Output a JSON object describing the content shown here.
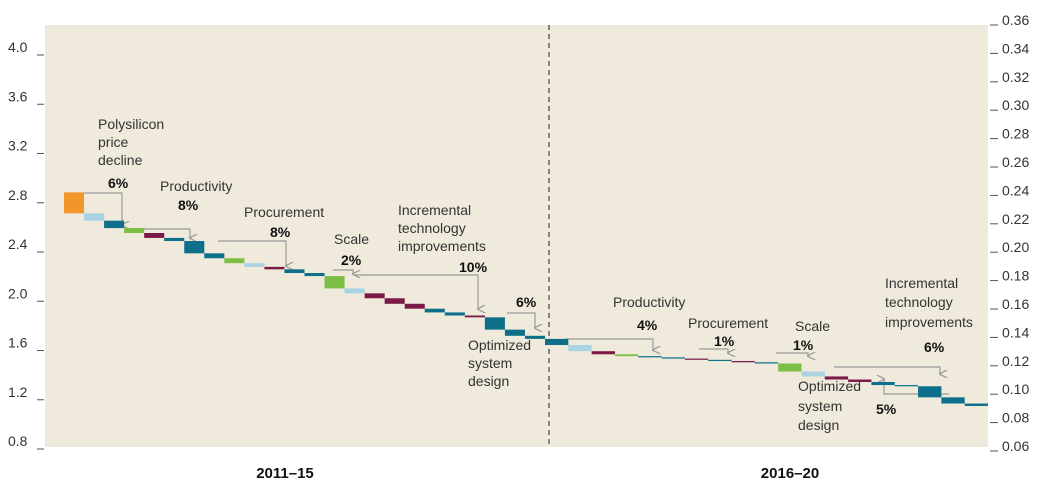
{
  "chart_data": {
    "type": "waterfall",
    "start": 2.86,
    "series": [
      {
        "name": "2011–15",
        "values": [
          -0.17,
          -0.06,
          -0.06,
          -0.04,
          -0.04,
          -0.025,
          -0.1,
          -0.04,
          -0.04,
          -0.03,
          -0.02,
          -0.03,
          -0.025,
          -0.1,
          -0.04,
          -0.04,
          -0.045,
          -0.04,
          -0.03,
          -0.025,
          -0.015,
          -0.1,
          -0.05,
          -0.025
        ],
        "colors": [
          "#f0962a",
          "#a9d2e3",
          "#0e6f8a",
          "#7dbf45",
          "#7b1a47",
          "#0e6f8a",
          "#0e6f8a",
          "#0e6f8a",
          "#7dbf45",
          "#a9d2e3",
          "#7b1a47",
          "#0e6f8a",
          "#0e6f8a",
          "#7dbf45",
          "#a9d2e3",
          "#7b1a47",
          "#7b1a47",
          "#7b1a47",
          "#0e6f8a",
          "#0e6f8a",
          "#7b1a47",
          "#0e6f8a",
          "#0e6f8a",
          "#0e6f8a"
        ]
      },
      {
        "name": "2016–20",
        "values": [
          -0.05,
          -0.05,
          -0.025,
          -0.015,
          -0.01,
          -0.01,
          -0.01,
          -0.01,
          -0.01,
          -0.01,
          -0.065,
          -0.04,
          -0.025,
          -0.02,
          -0.025,
          -0.01,
          -0.09,
          -0.05,
          -0.02
        ],
        "colors": [
          "#0e6f8a",
          "#a9d2e3",
          "#7b1a47",
          "#7dbf45",
          "#0e6f8a",
          "#0e6f8a",
          "#7b1a47",
          "#0e6f8a",
          "#7b1a47",
          "#0e6f8a",
          "#7dbf45",
          "#a9d2e3",
          "#7b1a47",
          "#7b1a47",
          "#0e6f8a",
          "#0e6f8a",
          "#0e6f8a",
          "#0e6f8a",
          "#0e6f8a"
        ]
      }
    ],
    "ylim": [
      0.8,
      4.26
    ],
    "yticks": [
      {
        "value": 0.8,
        "label": "0.8"
      },
      {
        "value": 1.2,
        "label": "1.2"
      },
      {
        "value": 1.6,
        "label": "1.6"
      },
      {
        "value": 2.0,
        "label": "2.0"
      },
      {
        "value": 2.4,
        "label": "2.4"
      },
      {
        "value": 2.8,
        "label": "2.8"
      },
      {
        "value": 3.2,
        "label": "3.2"
      },
      {
        "value": 3.6,
        "label": "3.6"
      },
      {
        "value": 4.0,
        "label": "4.0"
      }
    ],
    "y2lim": [
      0.06,
      0.36
    ],
    "y2ticks": [
      {
        "value": 0.06,
        "label": "0.06"
      },
      {
        "value": 0.08,
        "label": "0.08"
      },
      {
        "value": 0.1,
        "label": "0.10"
      },
      {
        "value": 0.12,
        "label": "0.12"
      },
      {
        "value": 0.14,
        "label": "0.14"
      },
      {
        "value": 0.16,
        "label": "0.16"
      },
      {
        "value": 0.18,
        "label": "0.18"
      },
      {
        "value": 0.2,
        "label": "0.20"
      },
      {
        "value": 0.22,
        "label": "0.22"
      },
      {
        "value": 0.24,
        "label": "0.24"
      },
      {
        "value": 0.26,
        "label": "0.26"
      },
      {
        "value": 0.28,
        "label": "0.28"
      },
      {
        "value": 0.3,
        "label": "0.30"
      },
      {
        "value": 0.32,
        "label": "0.32"
      },
      {
        "value": 0.34,
        "label": "0.34"
      },
      {
        "value": 0.36,
        "label": "0.36"
      }
    ],
    "annotations": [
      {
        "text": [
          "Polysilicon",
          "price",
          "decline"
        ],
        "pct": "6%"
      },
      {
        "text": [
          "Productivity"
        ],
        "pct": "8%"
      },
      {
        "text": [
          "Procurement"
        ],
        "pct": "8%"
      },
      {
        "text": [
          "Scale"
        ],
        "pct": "2%"
      },
      {
        "text": [
          "Incremental",
          "technology",
          "improvements"
        ],
        "pct": "10%"
      },
      {
        "text": [
          "Optimized",
          "system",
          "design"
        ],
        "pct": "6%"
      },
      {
        "text": [
          "Productivity"
        ],
        "pct": "4%"
      },
      {
        "text": [
          "Procurement"
        ],
        "pct": "1%"
      },
      {
        "text": [
          "Scale"
        ],
        "pct": "1%"
      },
      {
        "text": [
          "Incremental",
          "technology",
          "improvements"
        ],
        "pct": "6%"
      },
      {
        "text": [
          "Optimized",
          "system",
          "design"
        ],
        "pct": "5%"
      }
    ]
  }
}
